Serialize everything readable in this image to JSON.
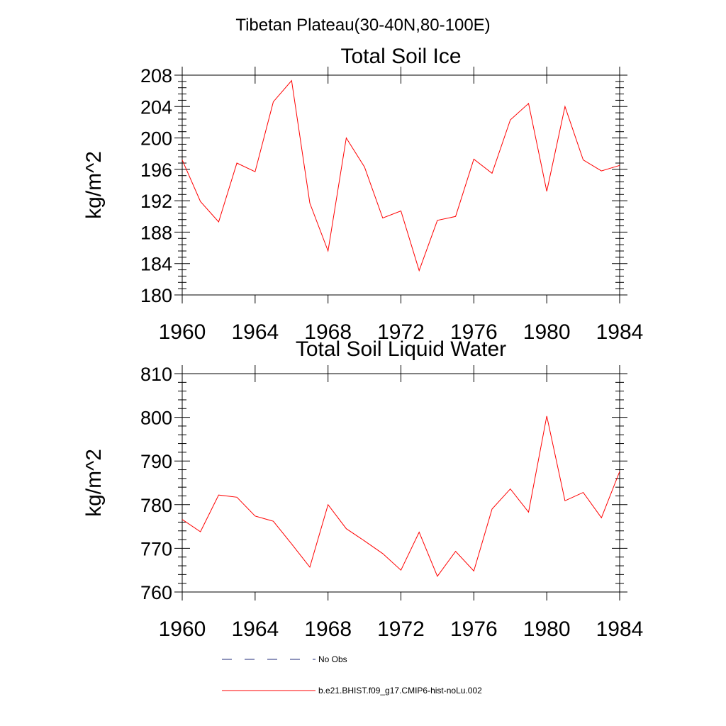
{
  "suptitle": "Tibetan Plateau(30-40N,80-100E)",
  "colors": {
    "model_line": "#ff0000",
    "obs_line": "#1f2a7a",
    "axes": "#000000"
  },
  "legend": {
    "obs_label": "No Obs",
    "model_label": "b.e21.BHIST.f09_g17.CMIP6-hist-noLu.002"
  },
  "chart_data": [
    {
      "type": "line",
      "title": "Total Soil Ice",
      "xlabel": "",
      "ylabel": "kg/m^2",
      "xlim": [
        1960,
        1984
      ],
      "ylim": [
        180,
        208
      ],
      "x_ticks": [
        1960,
        1964,
        1968,
        1972,
        1976,
        1980,
        1984
      ],
      "y_ticks": [
        180,
        184,
        188,
        192,
        196,
        200,
        204,
        208
      ],
      "grid": false,
      "series": [
        {
          "name": "b.e21.BHIST.f09_g17.CMIP6-hist-noLu.002",
          "x": [
            1960,
            1961,
            1962,
            1963,
            1964,
            1965,
            1966,
            1967,
            1968,
            1969,
            1970,
            1971,
            1972,
            1973,
            1974,
            1975,
            1976,
            1977,
            1978,
            1979,
            1980,
            1981,
            1982,
            1983,
            1984
          ],
          "values": [
            197.2,
            191.9,
            189.3,
            196.8,
            195.7,
            204.6,
            207.3,
            191.7,
            185.6,
            200.0,
            196.3,
            189.8,
            190.7,
            183.1,
            189.5,
            190.0,
            197.3,
            195.5,
            202.3,
            204.4,
            193.2,
            204.0,
            197.2,
            195.8,
            196.5
          ]
        }
      ]
    },
    {
      "type": "line",
      "title": "Total Soil Liquid Water",
      "xlabel": "",
      "ylabel": "kg/m^2",
      "xlim": [
        1960,
        1984
      ],
      "ylim": [
        760,
        810
      ],
      "x_ticks": [
        1960,
        1964,
        1968,
        1972,
        1976,
        1980,
        1984
      ],
      "y_ticks": [
        760,
        770,
        780,
        790,
        800,
        810
      ],
      "grid": false,
      "series": [
        {
          "name": "b.e21.BHIST.f09_g17.CMIP6-hist-noLu.002",
          "x": [
            1960,
            1961,
            1962,
            1963,
            1964,
            1965,
            1966,
            1967,
            1968,
            1969,
            1970,
            1971,
            1972,
            1973,
            1974,
            1975,
            1976,
            1977,
            1978,
            1979,
            1980,
            1981,
            1982,
            1983,
            1984
          ],
          "values": [
            776.6,
            773.8,
            782.2,
            781.7,
            777.4,
            776.2,
            771.0,
            765.7,
            780.0,
            774.5,
            771.7,
            768.8,
            765.0,
            773.7,
            763.6,
            769.3,
            764.8,
            779.0,
            783.6,
            778.3,
            800.3,
            780.9,
            782.8,
            777.0,
            787.6
          ]
        }
      ]
    }
  ]
}
